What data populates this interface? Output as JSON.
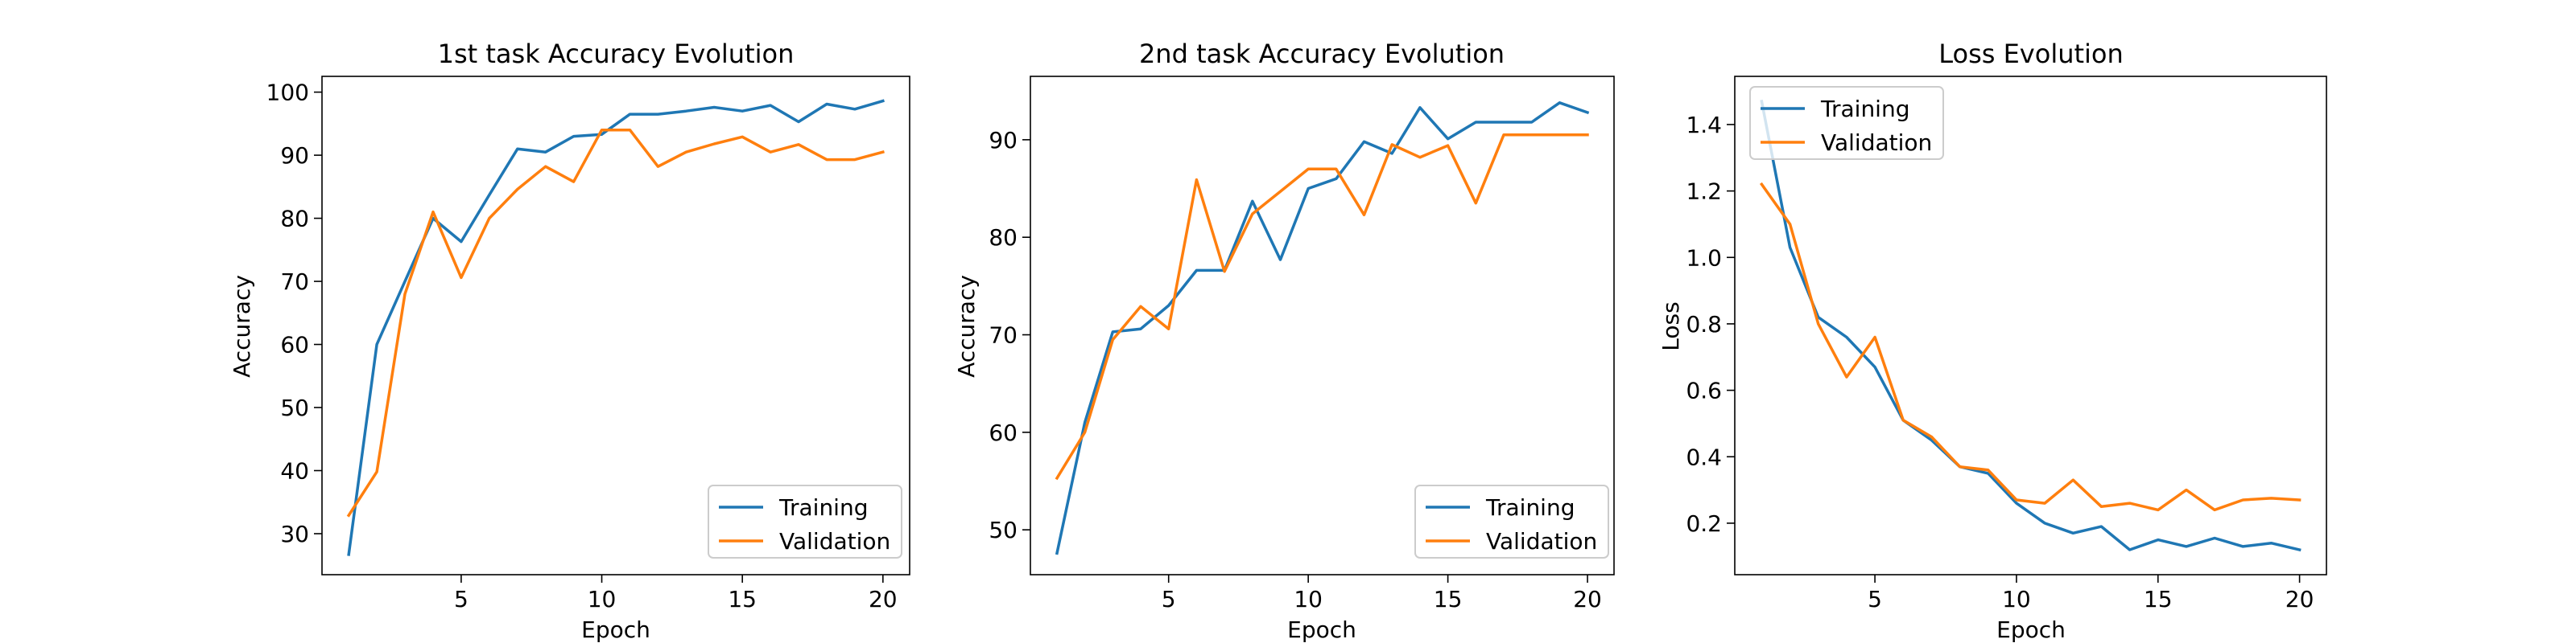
{
  "chart_data": [
    {
      "type": "line",
      "title": "1st task Accuracy Evolution",
      "xlabel": "Epoch",
      "ylabel": "Accuracy",
      "xlim": [
        0.05,
        20.95
      ],
      "ylim": [
        23.5,
        102.5
      ],
      "xticks": [
        5,
        10,
        15,
        20
      ],
      "yticks": [
        30,
        40,
        50,
        60,
        70,
        80,
        90,
        100
      ],
      "grid": false,
      "legend_position": "lower right",
      "x": [
        1,
        2,
        3,
        4,
        5,
        6,
        7,
        8,
        9,
        10,
        11,
        12,
        13,
        14,
        15,
        16,
        17,
        18,
        19,
        20
      ],
      "series": [
        {
          "name": "Training",
          "color": "#1f77b4",
          "values": [
            26.7,
            60.0,
            70.0,
            80.0,
            76.3,
            83.7,
            91.0,
            90.5,
            93.0,
            93.3,
            96.5,
            96.5,
            97.0,
            97.6,
            97.0,
            97.9,
            95.3,
            98.1,
            97.3,
            98.6
          ]
        },
        {
          "name": "Validation",
          "color": "#ff7f0e",
          "values": [
            32.9,
            39.8,
            68.0,
            81.0,
            70.6,
            80.0,
            84.6,
            88.2,
            85.8,
            94.0,
            94.0,
            88.2,
            90.5,
            91.8,
            92.9,
            90.5,
            91.7,
            89.3,
            89.3,
            90.5
          ]
        }
      ]
    },
    {
      "type": "line",
      "title": "2nd task Accuracy Evolution",
      "xlabel": "Epoch",
      "ylabel": "Accuracy",
      "xlim": [
        0.05,
        20.95
      ],
      "ylim": [
        45.4,
        96.5
      ],
      "xticks": [
        5,
        10,
        15,
        20
      ],
      "yticks": [
        50,
        60,
        70,
        80,
        90
      ],
      "grid": false,
      "legend_position": "lower right",
      "x": [
        1,
        2,
        3,
        4,
        5,
        6,
        7,
        8,
        9,
        10,
        11,
        12,
        13,
        14,
        15,
        16,
        17,
        18,
        19,
        20
      ],
      "series": [
        {
          "name": "Training",
          "color": "#1f77b4",
          "values": [
            47.6,
            61.0,
            70.3,
            70.6,
            73.0,
            76.6,
            76.6,
            83.7,
            77.7,
            85.0,
            86.0,
            89.8,
            88.6,
            93.3,
            90.1,
            91.8,
            91.8,
            91.8,
            93.8,
            92.8
          ]
        },
        {
          "name": "Validation",
          "color": "#ff7f0e",
          "values": [
            55.3,
            60.0,
            69.5,
            72.9,
            70.6,
            85.9,
            76.5,
            82.4,
            84.7,
            87.0,
            87.0,
            82.3,
            89.5,
            88.2,
            89.4,
            83.5,
            90.5,
            90.5,
            90.5,
            90.5
          ]
        }
      ]
    },
    {
      "type": "line",
      "title": "Loss Evolution",
      "xlabel": "Epoch",
      "ylabel": "Loss",
      "xlim": [
        0.05,
        20.95
      ],
      "ylim": [
        0.045,
        1.545
      ],
      "xticks": [
        5,
        10,
        15,
        20
      ],
      "yticks": [
        0.2,
        0.4,
        0.6,
        0.8,
        1.0,
        1.2,
        1.4
      ],
      "grid": false,
      "legend_position": "upper left",
      "x": [
        1,
        2,
        3,
        4,
        5,
        6,
        7,
        8,
        9,
        10,
        11,
        12,
        13,
        14,
        15,
        16,
        17,
        18,
        19,
        20
      ],
      "series": [
        {
          "name": "Training",
          "color": "#1f77b4",
          "values": [
            1.47,
            1.03,
            0.82,
            0.76,
            0.67,
            0.51,
            0.45,
            0.37,
            0.35,
            0.26,
            0.2,
            0.17,
            0.19,
            0.12,
            0.15,
            0.13,
            0.155,
            0.13,
            0.14,
            0.12
          ]
        },
        {
          "name": "Validation",
          "color": "#ff7f0e",
          "values": [
            1.22,
            1.1,
            0.8,
            0.64,
            0.76,
            0.51,
            0.46,
            0.37,
            0.36,
            0.27,
            0.26,
            0.33,
            0.25,
            0.26,
            0.24,
            0.3,
            0.24,
            0.27,
            0.275,
            0.27
          ]
        }
      ]
    }
  ]
}
